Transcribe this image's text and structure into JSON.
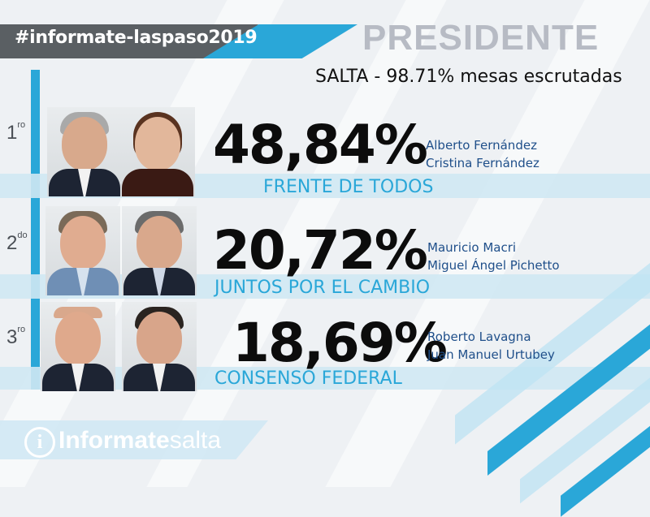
{
  "header": {
    "hashtag": "#informate-laspaso2019",
    "title": "PRESIDENTE",
    "subtitle": "SALTA - 98.71% mesas escrutadas"
  },
  "results": [
    {
      "rank": "1",
      "rank_suffix": "ro",
      "percent": "48,84%",
      "candidate_1": "Alberto Fernández",
      "candidate_2": "Cristina Fernández",
      "party": "FRENTE DE TODOS"
    },
    {
      "rank": "2",
      "rank_suffix": "do",
      "percent": "20,72%",
      "candidate_1": "Mauricio Macri",
      "candidate_2": "Miguel Ángel Pichetto",
      "party": "JUNTOS POR EL CAMBIO"
    },
    {
      "rank": "3",
      "rank_suffix": "ro",
      "percent": "18,69%",
      "candidate_1": "Roberto Lavagna",
      "candidate_2": "Juan Manuel Urtubey",
      "party": "CONSENSO FEDERAL"
    }
  ],
  "logo": {
    "icon_letter": "i",
    "brand_bold": "Informate",
    "brand_light": "salta"
  },
  "colors": {
    "accent": "#2aa7d8",
    "dark": "#5a5f63",
    "light_band": "#cfe8f3"
  }
}
